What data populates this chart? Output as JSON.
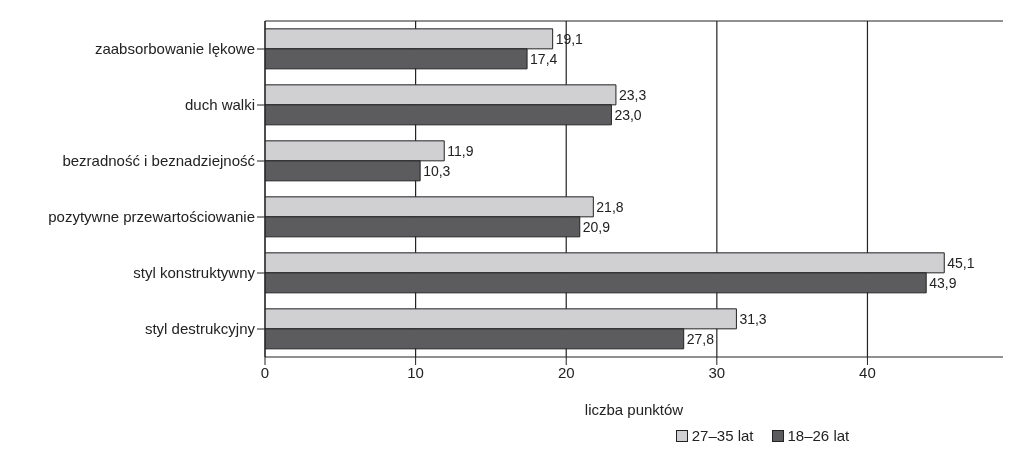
{
  "chart_data": {
    "type": "bar",
    "orientation": "horizontal",
    "xlabel": "liczba punktów",
    "categories": [
      "zaabsorbowanie lękowe",
      "duch walki",
      "bezradność i beznadziejność",
      "pozytywne przewartościowanie",
      "styl konstruktywny",
      "styl destrukcyjny"
    ],
    "series": [
      {
        "name": "27–35 lat",
        "color": "#d0d0d2",
        "values": [
          19.1,
          23.3,
          11.9,
          21.8,
          45.1,
          31.3
        ],
        "value_labels": [
          "19,1",
          "23,3",
          "11,9",
          "21,8",
          "45,1",
          "31,3"
        ]
      },
      {
        "name": "18–26 lat",
        "color": "#5c5c5e",
        "values": [
          17.4,
          23.0,
          10.3,
          20.9,
          43.9,
          27.8
        ],
        "value_labels": [
          "17,4",
          "23,0",
          "10,3",
          "20,9",
          "43,9",
          "27,8"
        ]
      }
    ],
    "xlim": [
      0,
      49
    ],
    "xticks": [
      0,
      10,
      20,
      30,
      40
    ],
    "grid": "x",
    "legend": "bottom"
  }
}
